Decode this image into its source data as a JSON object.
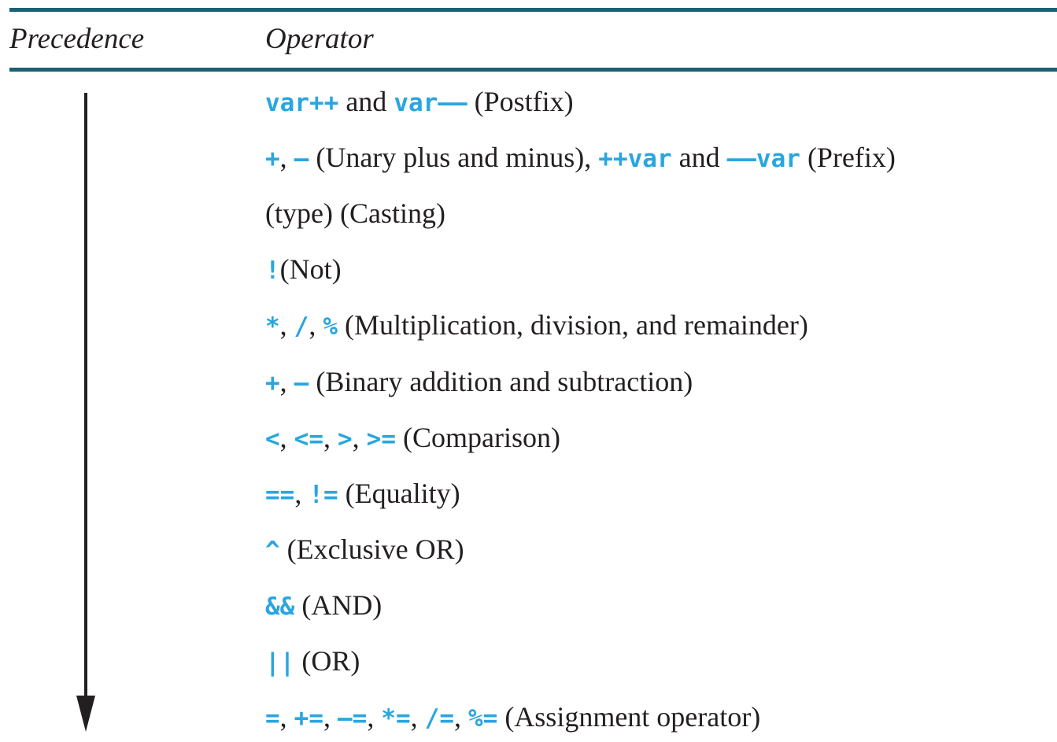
{
  "table": {
    "header": {
      "precedence": "Precedence",
      "operator": "Operator"
    },
    "rows": [
      [
        {
          "t": "var++",
          "c": true
        },
        {
          "t": " and ",
          "c": false
        },
        {
          "t": "var––",
          "c": true
        },
        {
          "t": " (Postfix)",
          "c": false
        }
      ],
      [
        {
          "t": "+",
          "c": true
        },
        {
          "t": ", ",
          "c": false
        },
        {
          "t": "–",
          "c": true
        },
        {
          "t": " (Unary plus and minus), ",
          "c": false
        },
        {
          "t": "++var",
          "c": true
        },
        {
          "t": " and ",
          "c": false
        },
        {
          "t": "––var",
          "c": true
        },
        {
          "t": " (Prefix)",
          "c": false
        }
      ],
      [
        {
          "t": "(type) (Casting)",
          "c": false
        }
      ],
      [
        {
          "t": "!",
          "c": true
        },
        {
          "t": "(Not)",
          "c": false
        }
      ],
      [
        {
          "t": "*",
          "c": true
        },
        {
          "t": ", ",
          "c": false
        },
        {
          "t": "/",
          "c": true
        },
        {
          "t": ", ",
          "c": false
        },
        {
          "t": "%",
          "c": true
        },
        {
          "t": " (Multiplication, division, and remainder)",
          "c": false
        }
      ],
      [
        {
          "t": "+",
          "c": true
        },
        {
          "t": ", ",
          "c": false
        },
        {
          "t": "–",
          "c": true
        },
        {
          "t": " (Binary addition and subtraction)",
          "c": false
        }
      ],
      [
        {
          "t": "<",
          "c": true
        },
        {
          "t": ", ",
          "c": false
        },
        {
          "t": "<=",
          "c": true
        },
        {
          "t": ", ",
          "c": false
        },
        {
          "t": ">",
          "c": true
        },
        {
          "t": ", ",
          "c": false
        },
        {
          "t": ">=",
          "c": true
        },
        {
          "t": " (Comparison)",
          "c": false
        }
      ],
      [
        {
          "t": "==",
          "c": true
        },
        {
          "t": ", ",
          "c": false
        },
        {
          "t": "!=",
          "c": true
        },
        {
          "t": " (Equality)",
          "c": false
        }
      ],
      [
        {
          "t": "^",
          "c": true
        },
        {
          "t": " (Exclusive OR)",
          "c": false
        }
      ],
      [
        {
          "t": "&&",
          "c": true
        },
        {
          "t": " (AND)",
          "c": false
        }
      ],
      [
        {
          "t": "||",
          "c": true
        },
        {
          "t": " (OR)",
          "c": false
        }
      ],
      [
        {
          "t": "=",
          "c": true
        },
        {
          "t": ", ",
          "c": false
        },
        {
          "t": "+=",
          "c": true
        },
        {
          "t": ", ",
          "c": false
        },
        {
          "t": "–=",
          "c": true
        },
        {
          "t": ", ",
          "c": false
        },
        {
          "t": "*=",
          "c": true
        },
        {
          "t": ", ",
          "c": false
        },
        {
          "t": "/=",
          "c": true
        },
        {
          "t": ", ",
          "c": false
        },
        {
          "t": "%=",
          "c": true
        },
        {
          "t": " (Assignment operator)",
          "c": false
        }
      ]
    ]
  },
  "colors": {
    "rule": "#1c6073",
    "code": "#29a6e0",
    "text": "#231f20"
  },
  "icons": {
    "precedence_arrow": "arrow-down-icon"
  }
}
